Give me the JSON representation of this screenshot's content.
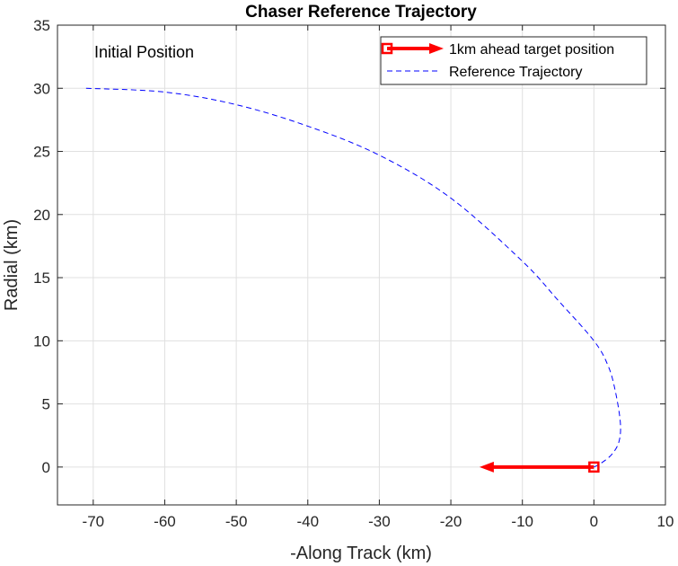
{
  "chart_data": {
    "type": "line",
    "title": "Chaser Reference Trajectory",
    "xlabel": "-Along Track (km)",
    "ylabel": "Radial (km)",
    "xlim": [
      -75,
      10
    ],
    "ylim": [
      -3,
      35
    ],
    "xticks": [
      -70,
      -60,
      -50,
      -40,
      -30,
      -20,
      -10,
      0,
      10
    ],
    "yticks": [
      0,
      5,
      10,
      15,
      20,
      25,
      30,
      35
    ],
    "grid": true,
    "legend_location": "top-right",
    "annotation": "Initial Position",
    "series": [
      {
        "name": "Reference Trajectory",
        "style": "dashed",
        "color": "#0000ff",
        "x": [
          -71,
          -60,
          -50,
          -40,
          -30,
          -20,
          -10,
          -5,
          0,
          2,
          3,
          3.7,
          3.5,
          2.5,
          1,
          0
        ],
        "y": [
          30,
          29.7,
          28.7,
          27,
          24.7,
          21.3,
          16.3,
          13.2,
          10,
          8,
          6,
          3.5,
          2,
          1,
          0.3,
          0
        ]
      },
      {
        "name": "1km ahead target position",
        "style": "arrow",
        "color": "#ff0000",
        "marker": "square",
        "x": [
          0,
          -16
        ],
        "y": [
          0,
          0
        ]
      }
    ]
  }
}
